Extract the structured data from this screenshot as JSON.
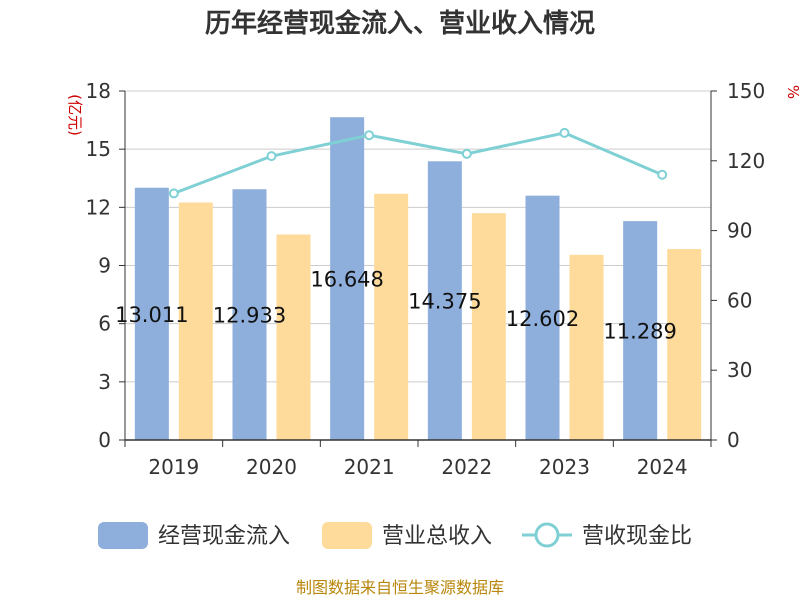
{
  "chart_data": {
    "type": "bar",
    "title": "历年经营现金流入、营业收入情况",
    "categories": [
      "2019",
      "2020",
      "2021",
      "2022",
      "2023",
      "2024"
    ],
    "series": [
      {
        "name": "经营现金流入",
        "type": "bar",
        "axis": "left",
        "color": "#8eaedb",
        "values": [
          13.011,
          12.933,
          16.648,
          14.375,
          12.602,
          11.289
        ],
        "labels": [
          "13.011",
          "12.933",
          "16.648",
          "14.375",
          "12.602",
          "11.289"
        ]
      },
      {
        "name": "营业总收入",
        "type": "bar",
        "axis": "left",
        "color": "#fedb9b",
        "values": [
          12.25,
          10.6,
          12.7,
          11.7,
          9.55,
          9.85
        ]
      },
      {
        "name": "营收现金比",
        "type": "line",
        "axis": "right",
        "color": "#7fd0d4",
        "values": [
          106,
          122,
          131,
          123,
          132,
          114
        ]
      }
    ],
    "y_left": {
      "unit": "(亿元)",
      "min": 0,
      "max": 18,
      "ticks": [
        "0",
        "3",
        "6",
        "9",
        "12",
        "15",
        "18"
      ]
    },
    "y_right": {
      "unit": "%",
      "min": 0,
      "max": 150,
      "ticks": [
        "0",
        "30",
        "60",
        "90",
        "120",
        "150"
      ]
    },
    "grid": true,
    "legend_position": "bottom",
    "source": "制图数据来自恒生聚源数据库"
  }
}
